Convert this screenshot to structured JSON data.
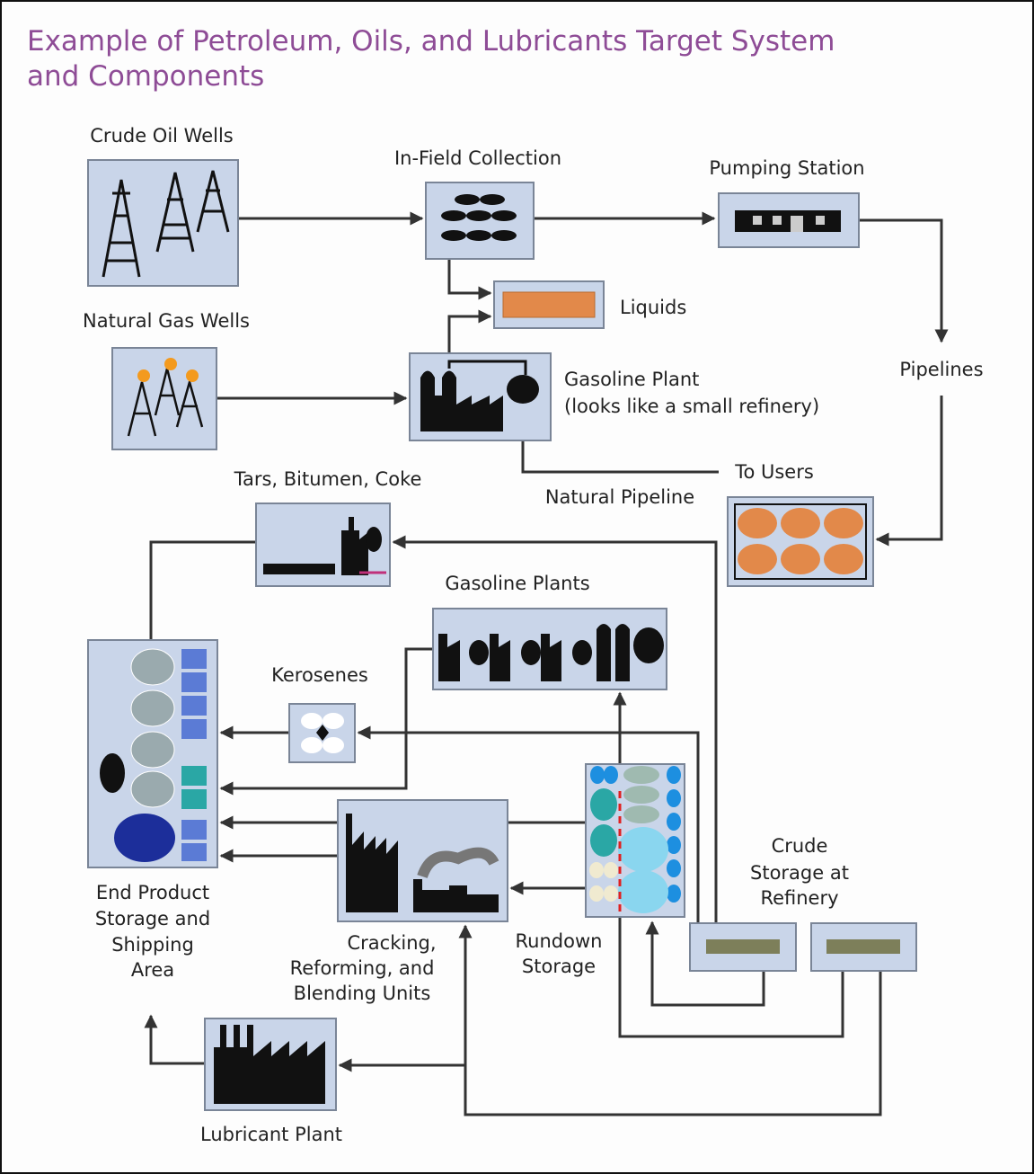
{
  "title": [
    "Example of Petroleum, Oils, and Lubricants Target System",
    "and Components"
  ],
  "nodes": [
    {
      "label": [
        "Crude Oil Wells"
      ]
    },
    {
      "label": [
        "In-Field Collection"
      ]
    },
    {
      "label": [
        "Pumping Station"
      ]
    },
    {
      "label": [
        "Liquids"
      ]
    },
    {
      "label": [
        "Natural Gas Wells"
      ]
    },
    {
      "label": [
        "Gasoline Plant",
        "(looks like a small refinery)"
      ]
    },
    {
      "label": [
        "Tars, Bitumen, Coke"
      ]
    },
    {
      "label": [
        "Gasoline Plants"
      ]
    },
    {
      "label": [
        "Kerosenes"
      ]
    },
    {
      "label": [
        "End Product",
        "Storage and",
        "Shipping",
        "Area"
      ]
    },
    {
      "label": [
        "Cracking,",
        "Reforming, and",
        "Blending Units"
      ]
    },
    {
      "label": [
        "Rundown",
        "Storage"
      ]
    },
    {
      "label": [
        "Crude",
        "Storage at",
        "Refinery"
      ]
    },
    {
      "label": [
        "Lubricant Plant"
      ]
    }
  ],
  "edge_labels": [
    "Pipelines",
    "To Users",
    "Natural Pipeline"
  ]
}
